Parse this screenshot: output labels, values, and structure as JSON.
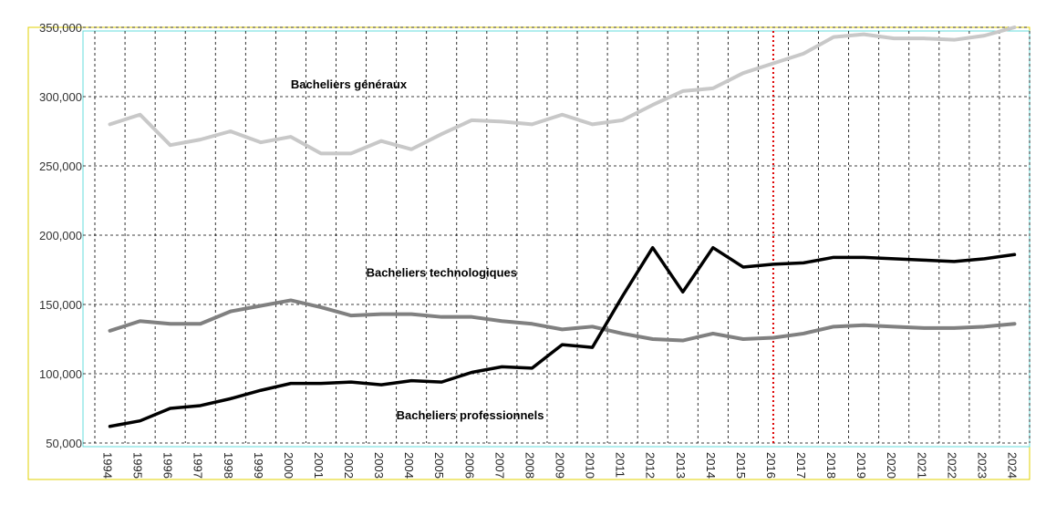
{
  "chart_data": {
    "type": "line",
    "title": "",
    "xlabel": "",
    "ylabel": "",
    "x": [
      1994,
      1995,
      1996,
      1997,
      1998,
      1999,
      2000,
      2001,
      2002,
      2003,
      2004,
      2005,
      2006,
      2007,
      2008,
      2009,
      2010,
      2011,
      2012,
      2013,
      2014,
      2015,
      2016,
      2017,
      2018,
      2019,
      2020,
      2021,
      2022,
      2023,
      2024
    ],
    "x_tick_labels": [
      "1994",
      "1995",
      "1996",
      "1997",
      "1998",
      "1999",
      "2000",
      "2001",
      "2002",
      "2003",
      "2004",
      "2005",
      "2006",
      "2007",
      "2008",
      "2009",
      "2010",
      "2011",
      "2012",
      "2013",
      "2014",
      "2015",
      "2016",
      "2017",
      "2018",
      "2019",
      "2020",
      "2021",
      "2022",
      "2023",
      "2024"
    ],
    "ylim": [
      50000,
      350000
    ],
    "y_ticks": [
      50000,
      100000,
      150000,
      200000,
      250000,
      300000,
      350000
    ],
    "y_tick_labels": [
      "50,000",
      "100,000",
      "150,000",
      "200,000",
      "250,000",
      "300,000",
      "350,000"
    ],
    "grid": true,
    "reference_line": {
      "x": 2016,
      "color": "#dd0000",
      "style": "dotted"
    },
    "series": [
      {
        "name": "Bacheliers généraux",
        "color": "#c8c8c8",
        "label_at": {
          "x": 2000.5,
          "y": 306000
        },
        "values": [
          280000,
          287000,
          265000,
          269000,
          275000,
          267000,
          271000,
          259000,
          259000,
          268000,
          262000,
          273000,
          283000,
          282000,
          280000,
          287000,
          280000,
          283000,
          294000,
          304000,
          306000,
          317000,
          324000,
          331000,
          343000,
          345000,
          342000,
          342000,
          341000,
          344000,
          350000
        ]
      },
      {
        "name": "Bacheliers technologiques",
        "color": "#808080",
        "label_at": {
          "x": 2003,
          "y": 170000
        },
        "values": [
          131000,
          138000,
          136000,
          136000,
          145000,
          149000,
          153000,
          148000,
          142000,
          143000,
          143000,
          141000,
          141000,
          138000,
          136000,
          132000,
          134000,
          129000,
          125000,
          124000,
          129000,
          125000,
          126000,
          129000,
          134000,
          135000,
          134000,
          133000,
          133000,
          134000,
          136000
        ]
      },
      {
        "name": "Bacheliers professionnels",
        "color": "#000000",
        "label_at": {
          "x": 2004,
          "y": 67000
        },
        "values": [
          62000,
          66000,
          75000,
          77000,
          82000,
          88000,
          93000,
          93000,
          94000,
          92000,
          95000,
          94000,
          101000,
          105000,
          104000,
          121000,
          119000,
          156000,
          191000,
          159000,
          191000,
          177000,
          179000,
          180000,
          184000,
          184000,
          183000,
          182000,
          181000,
          183000,
          186000
        ]
      }
    ]
  }
}
